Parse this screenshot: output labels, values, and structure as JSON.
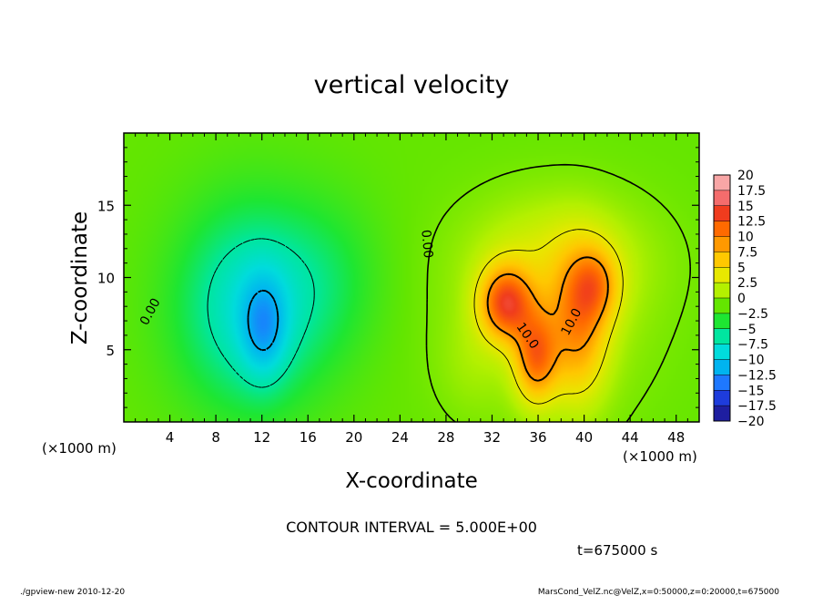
{
  "chart_data": {
    "type": "heatmap",
    "title": "vertical velocity",
    "xlabel": "X-coordinate",
    "ylabel": "Z-coordinate",
    "x_unit_label": "(×1000 m)",
    "y_unit_label": "(×1000 m)",
    "xlim": [
      0,
      50
    ],
    "ylim": [
      0,
      20
    ],
    "x_ticks": [
      4,
      8,
      12,
      16,
      20,
      24,
      28,
      32,
      36,
      40,
      44,
      48
    ],
    "y_ticks": [
      5,
      10,
      15
    ],
    "grid": false,
    "contour_interval_text": "CONTOUR INTERVAL = 5.000E+00",
    "time_text": "t=675000 s",
    "contour_labels": [
      {
        "text": "0.00",
        "x": 2.6,
        "y": 7.5,
        "angle": -62
      },
      {
        "text": "0.00",
        "x": 26.0,
        "y": 12.3,
        "angle": 85
      },
      {
        "text": "10.0",
        "x": 34.8,
        "y": 5.8,
        "angle": 55
      },
      {
        "text": "10.0",
        "x": 39.2,
        "y": 6.8,
        "angle": -62
      }
    ],
    "colorbar": {
      "labels": [
        "20",
        "17.5",
        "15",
        "12.5",
        "10",
        "7.5",
        "5",
        "2.5",
        "0",
        "−2.5",
        "−5",
        "−7.5",
        "−10",
        "−12.5",
        "−15",
        "−17.5",
        "−20"
      ],
      "colors": [
        "#f8a6a6",
        "#f46c6c",
        "#f03c1e",
        "#ff6a00",
        "#ff9900",
        "#ffc800",
        "#e8e800",
        "#b4f000",
        "#64e600",
        "#1ee632",
        "#00e6a0",
        "#00dcdc",
        "#00b4f0",
        "#1e78ff",
        "#1e3cdc",
        "#1e1ea0",
        "#6414b4"
      ]
    },
    "anomalies": [
      {
        "x": 11,
        "y": 8,
        "sx": 4.5,
        "sy": 5.0,
        "amp": -7
      },
      {
        "x": 12.2,
        "y": 6.5,
        "sx": 1.4,
        "sy": 2.5,
        "amp": -5
      },
      {
        "x": 18,
        "y": 10,
        "sx": 3.5,
        "sy": 4,
        "amp": -2
      },
      {
        "x": 33.2,
        "y": 8.2,
        "sx": 1.6,
        "sy": 1.8,
        "amp": 12
      },
      {
        "x": 35.8,
        "y": 4.5,
        "sx": 1.3,
        "sy": 2.2,
        "amp": 10
      },
      {
        "x": 39.5,
        "y": 6.5,
        "sx": 1.8,
        "sy": 3.5,
        "amp": 8
      },
      {
        "x": 41,
        "y": 9.5,
        "sx": 1.5,
        "sy": 1.8,
        "amp": 6
      },
      {
        "x": 38,
        "y": 11.5,
        "sx": 5.5,
        "sy": 3,
        "amp": 3
      },
      {
        "x": 37,
        "y": 7,
        "sx": 6,
        "sy": 5,
        "amp": 2.5
      },
      {
        "x": 30,
        "y": 4,
        "sx": 2,
        "sy": 2.5,
        "amp": 1
      }
    ]
  },
  "footer": {
    "left": "./gpview-new  2010-12-20",
    "right": "MarsCond_VelZ.nc@VelZ,x=0:50000,z=0:20000,t=675000"
  }
}
